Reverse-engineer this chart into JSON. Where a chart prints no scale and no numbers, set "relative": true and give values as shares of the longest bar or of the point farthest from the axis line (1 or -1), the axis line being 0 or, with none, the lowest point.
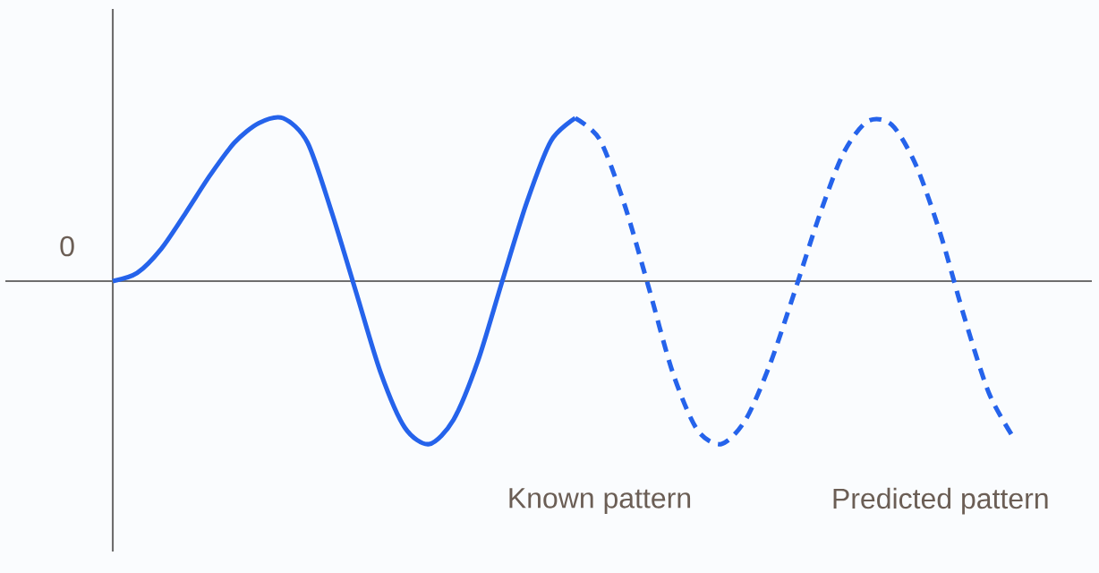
{
  "chart_data": {
    "type": "line",
    "relative": true,
    "categories": [
      null,
      null,
      null,
      null,
      null,
      null,
      null,
      null,
      null,
      null,
      null,
      null,
      null,
      null,
      null,
      null,
      null,
      null,
      null,
      null,
      "Known pattern",
      null,
      null,
      null,
      null,
      null,
      null,
      null,
      null,
      null,
      null,
      null,
      null,
      null,
      "Predicted pattern",
      null,
      null,
      null
    ],
    "series": [
      {
        "color": "#2563eb",
        "line_style": "solid",
        "values": [
          0,
          0.05,
          0.2,
          0.42,
          0.65,
          0.85,
          0.97,
          1.0,
          0.85,
          0.42,
          -0.07,
          -0.56,
          -0.9,
          -1.0,
          -0.85,
          -0.49,
          0,
          0.48,
          0.86,
          1.0,
          null,
          null,
          null,
          null,
          null,
          null,
          null,
          null,
          null,
          null,
          null,
          null,
          null,
          null,
          null,
          null,
          null,
          null
        ]
      },
      {
        "color": "#2563eb",
        "line_style": "dashed",
        "values": [
          null,
          null,
          null,
          null,
          null,
          null,
          null,
          null,
          null,
          null,
          null,
          null,
          null,
          null,
          null,
          null,
          null,
          null,
          null,
          1.0,
          0.87,
          0.48,
          -0.03,
          -0.56,
          -0.91,
          -1.0,
          -0.85,
          -0.51,
          -0.07,
          0.39,
          0.78,
          0.98,
          0.96,
          0.71,
          0.29,
          -0.23,
          -0.69,
          -0.96
        ]
      }
    ],
    "annotations": [
      "0"
    ],
    "marker": "none"
  }
}
